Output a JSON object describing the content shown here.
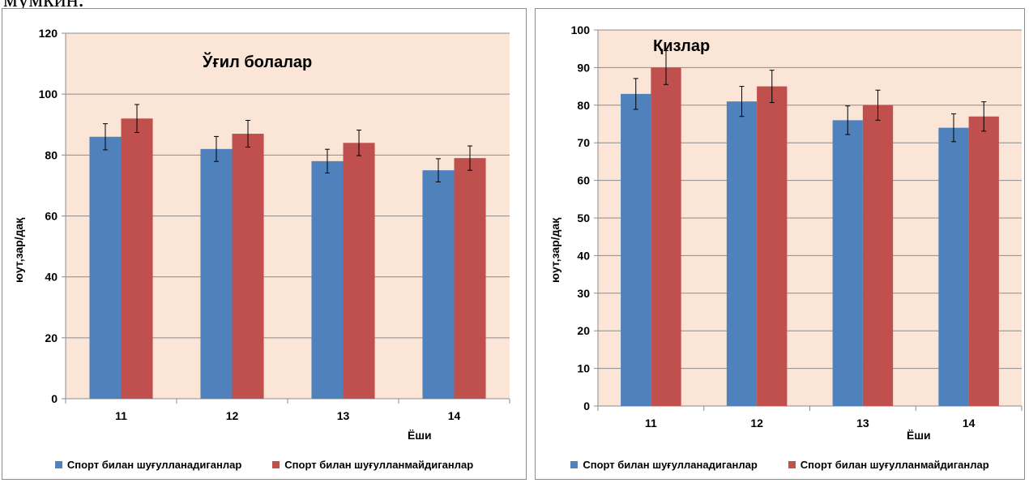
{
  "page_fragment": "мумкин.",
  "colors": {
    "series1": "#4f81bd",
    "series2": "#c0504d",
    "plot_bg": "#fbe5d6"
  },
  "chart_data": [
    {
      "type": "bar",
      "title": "Ўғил болалар",
      "categories": [
        "11",
        "12",
        "13",
        "14"
      ],
      "series": [
        {
          "name": "Спорт билан шуғулланадиганлар",
          "values": [
            86,
            82,
            78,
            75
          ],
          "errors": [
            4.3,
            4.1,
            3.9,
            3.8
          ]
        },
        {
          "name": "Спорт билан шуғулланмайдиганлар",
          "values": [
            92,
            87,
            84,
            79
          ],
          "errors": [
            4.6,
            4.4,
            4.2,
            4.0
          ]
        }
      ],
      "ylim": [
        0,
        120
      ],
      "yticks": [
        0,
        20,
        40,
        60,
        80,
        100,
        120
      ],
      "xlabel": "Ёши",
      "ylabel": "юут,зар/дақ",
      "grid": true,
      "legend": "bottom"
    },
    {
      "type": "bar",
      "title": "Қизлар",
      "categories": [
        "11",
        "12",
        "13",
        "14"
      ],
      "series": [
        {
          "name": "Спорт билан шуғулланадиганлар",
          "values": [
            83,
            81,
            76,
            74
          ],
          "errors": [
            4.1,
            4.0,
            3.8,
            3.7
          ]
        },
        {
          "name": "Спорт билан шуғулланмайдиганлар",
          "values": [
            90,
            85,
            80,
            77
          ],
          "errors": [
            4.5,
            4.3,
            4.0,
            3.9
          ]
        }
      ],
      "ylim": [
        0,
        100
      ],
      "yticks": [
        0,
        10,
        20,
        30,
        40,
        50,
        60,
        70,
        80,
        90,
        100
      ],
      "xlabel": "Ёши",
      "ylabel": "юут,зар/дақ",
      "grid": true,
      "legend": "bottom"
    }
  ]
}
